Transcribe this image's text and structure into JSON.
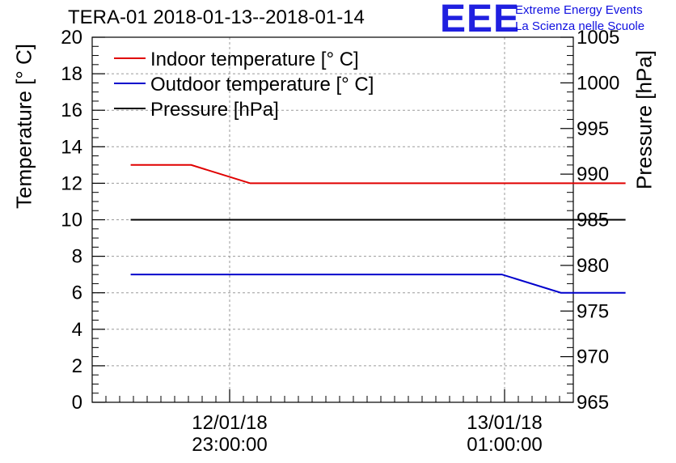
{
  "chart_data": {
    "type": "line",
    "title": "TERA-01 2018-01-13--2018-01-14",
    "logo": {
      "text": "EEE",
      "line1": "Extreme Energy Events",
      "line2": "La Scienza nelle Scuole",
      "color": "#2020e0"
    },
    "ylabel_left": "Temperature [° C]",
    "ylabel_right": "Pressure [hPa]",
    "ylim_left": [
      0,
      20
    ],
    "ylim_right": [
      965,
      1005
    ],
    "left_ticks": [
      "0",
      "2",
      "4",
      "6",
      "8",
      "10",
      "12",
      "14",
      "16",
      "18",
      "20"
    ],
    "right_ticks": [
      "965",
      "970",
      "975",
      "980",
      "985",
      "990",
      "995",
      "1000",
      "1005"
    ],
    "x_ticks": [
      {
        "date": "12/01/18",
        "time": "23:00:00",
        "hours": 0
      },
      {
        "date": "13/01/18",
        "time": "01:00:00",
        "hours": 2
      }
    ],
    "xlim_hours": [
      -1.0,
      2.5
    ],
    "grid": true,
    "legend_position": "top-left",
    "series": [
      {
        "name": "Indoor temperature [° C]",
        "axis": "left",
        "color": "#e00000",
        "x": [
          -0.72,
          -0.28,
          0.15,
          2.88
        ],
        "values": [
          13,
          13,
          12,
          12
        ]
      },
      {
        "name": "Outdoor temperature [° C]",
        "axis": "left",
        "color": "#0000cc",
        "x": [
          -0.72,
          1.98,
          2.41,
          2.88
        ],
        "values": [
          7,
          7,
          6,
          6
        ]
      },
      {
        "name": "Pressure [hPa]",
        "axis": "right",
        "color": "#000000",
        "x": [
          -0.72,
          2.88
        ],
        "values": [
          985,
          985
        ]
      }
    ]
  }
}
